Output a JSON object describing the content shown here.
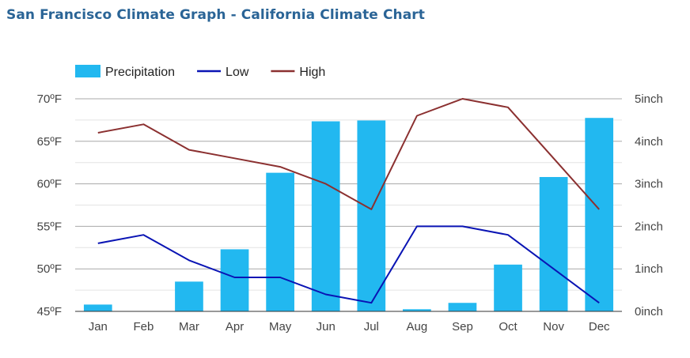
{
  "page": {
    "title": "San Francisco Climate Graph - California Climate Chart"
  },
  "chart_data": {
    "type": "bar",
    "categories": [
      "Jan",
      "Feb",
      "Mar",
      "Apr",
      "May",
      "Jun",
      "Jul",
      "Aug",
      "Sep",
      "Oct",
      "Nov",
      "Dec"
    ],
    "series": [
      {
        "name": "Precipitation",
        "kind": "bar",
        "axis": "right",
        "unit": "inch",
        "color": "#22b8f0",
        "values": [
          0.16,
          0.0,
          0.7,
          1.46,
          3.26,
          4.47,
          4.49,
          0.05,
          0.2,
          1.1,
          3.16,
          4.55
        ]
      },
      {
        "name": "Low",
        "kind": "line",
        "axis": "left",
        "unit": "°F",
        "color": "#0a14b4",
        "values": [
          53,
          54,
          51,
          49,
          49,
          47,
          46,
          55,
          55,
          54,
          50,
          46
        ]
      },
      {
        "name": "High",
        "kind": "line",
        "axis": "left",
        "unit": "°F",
        "color": "#8b3030",
        "values": [
          66,
          67,
          64,
          63,
          62,
          60,
          57,
          68,
          70,
          69,
          63,
          57
        ]
      }
    ],
    "y_left": {
      "ticks": [
        "70ºF",
        "65ºF",
        "60ºF",
        "55ºF",
        "50ºF",
        "45ºF"
      ],
      "tick_values": [
        70,
        65,
        60,
        55,
        50,
        45
      ],
      "ylim": [
        45,
        70
      ]
    },
    "y_right": {
      "ticks": [
        "5inch",
        "4inch",
        "3inch",
        "2inch",
        "1inch",
        "0inch"
      ],
      "tick_values": [
        5,
        4,
        3,
        2,
        1,
        0
      ],
      "ylim": [
        0,
        5
      ]
    },
    "legend": {
      "position": "top-left",
      "items": [
        "Precipitation",
        "Low",
        "High"
      ]
    },
    "grid": true
  }
}
